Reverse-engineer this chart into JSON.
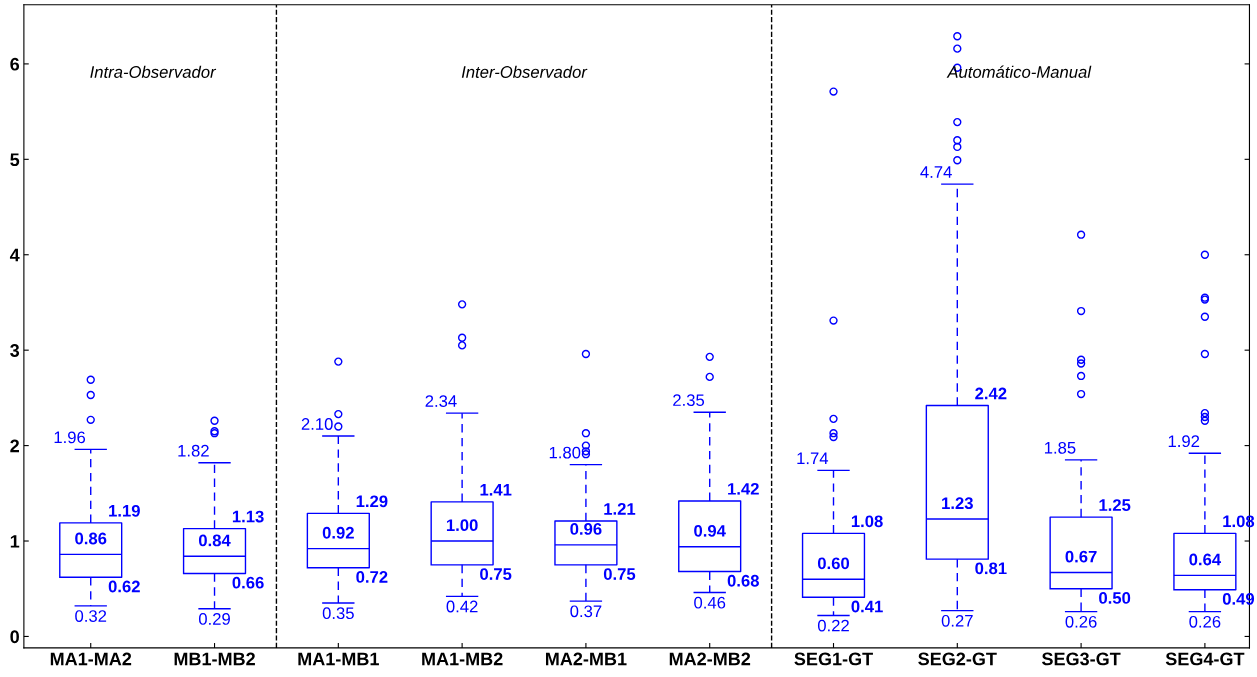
{
  "chart_data": {
    "type": "box",
    "categories": [
      "MA1-MA2",
      "MB1-MB2",
      "MA1-MB1",
      "MA1-MB2",
      "MA2-MB1",
      "MA2-MB2",
      "SEG1-GT",
      "SEG2-GT",
      "SEG3-GT",
      "SEG4-GT"
    ],
    "boxes": [
      {
        "low": 0.32,
        "q1": 0.62,
        "median": 0.86,
        "q3": 1.19,
        "high": 1.96,
        "outliers": [
          2.69,
          2.53,
          2.27
        ]
      },
      {
        "low": 0.29,
        "q1": 0.66,
        "median": 0.84,
        "q3": 1.13,
        "high": 1.82,
        "outliers": [
          2.26,
          2.15,
          2.13
        ]
      },
      {
        "low": 0.35,
        "q1": 0.72,
        "median": 0.92,
        "q3": 1.29,
        "high": 2.1,
        "outliers": [
          2.88,
          2.33,
          2.2
        ]
      },
      {
        "low": 0.42,
        "q1": 0.75,
        "median": 1.0,
        "q3": 1.41,
        "high": 2.34,
        "outliers": [
          3.48,
          3.13,
          3.05
        ]
      },
      {
        "low": 0.37,
        "q1": 0.75,
        "median": 0.96,
        "q3": 1.21,
        "high": 1.8,
        "outliers": [
          2.96,
          2.13,
          2.0,
          1.94,
          1.91
        ]
      },
      {
        "low": 0.46,
        "q1": 0.68,
        "median": 0.94,
        "q3": 1.42,
        "high": 2.35,
        "outliers": [
          2.93,
          2.72
        ]
      },
      {
        "low": 0.22,
        "q1": 0.41,
        "median": 0.6,
        "q3": 1.08,
        "high": 1.74,
        "outliers": [
          5.71,
          3.31,
          2.28,
          2.13,
          2.09
        ]
      },
      {
        "low": 0.27,
        "q1": 0.81,
        "median": 1.23,
        "q3": 2.42,
        "high": 4.74,
        "outliers": [
          6.29,
          6.16,
          5.96,
          5.39,
          5.2,
          5.13,
          4.99
        ]
      },
      {
        "low": 0.26,
        "q1": 0.5,
        "median": 0.67,
        "q3": 1.25,
        "high": 1.85,
        "outliers": [
          4.21,
          3.41,
          2.9,
          2.86,
          2.73,
          2.54
        ]
      },
      {
        "low": 0.26,
        "q1": 0.49,
        "median": 0.64,
        "q3": 1.08,
        "high": 1.92,
        "outliers": [
          4.0,
          3.55,
          3.53,
          3.35,
          2.96,
          2.34,
          2.3,
          2.26
        ]
      }
    ],
    "color": "#0000ff",
    "ylim": [
      -0.12,
      6.62
    ],
    "yticks": [
      0,
      1,
      2,
      3,
      4,
      5,
      6
    ],
    "grid": false,
    "annotations": [
      "Intra-Observador",
      "Inter-Observador",
      "Automático-Manual",
      {
        "text": "1.96",
        "x": "MA1-MA2",
        "y": 1.96
      },
      {
        "text": "1.19",
        "x": "MA1-MA2",
        "y": 1.19
      },
      {
        "text": "0.86",
        "x": "MA1-MA2",
        "y": 0.86
      },
      {
        "text": "0.62",
        "x": "MA1-MA2",
        "y": 0.62
      },
      {
        "text": "0.32",
        "x": "MA1-MA2",
        "y": 0.32
      },
      {
        "text": "1.82",
        "x": "MB1-MB2",
        "y": 1.82
      },
      {
        "text": "1.13",
        "x": "MB1-MB2",
        "y": 1.13
      },
      {
        "text": "0.84",
        "x": "MB1-MB2",
        "y": 0.84
      },
      {
        "text": "0.66",
        "x": "MB1-MB2",
        "y": 0.66
      },
      {
        "text": "0.29",
        "x": "MB1-MB2",
        "y": 0.29
      },
      {
        "text": "2.10",
        "x": "MA1-MB1",
        "y": 2.1
      },
      {
        "text": "1.29",
        "x": "MA1-MB1",
        "y": 1.29
      },
      {
        "text": "0.92",
        "x": "MA1-MB1",
        "y": 0.92
      },
      {
        "text": "0.72",
        "x": "MA1-MB1",
        "y": 0.72
      },
      {
        "text": "0.35",
        "x": "MA1-MB1",
        "y": 0.35
      },
      {
        "text": "2.34",
        "x": "MA1-MB2",
        "y": 2.34
      },
      {
        "text": "1.41",
        "x": "MA1-MB2",
        "y": 1.41
      },
      {
        "text": "1.00",
        "x": "MA1-MB2",
        "y": 1.0
      },
      {
        "text": "0.75",
        "x": "MA1-MB2",
        "y": 0.75
      },
      {
        "text": "0.42",
        "x": "MA1-MB2",
        "y": 0.42
      },
      {
        "text": "1.80",
        "x": "MA2-MB1",
        "y": 1.8
      },
      {
        "text": "1.21",
        "x": "MA2-MB1",
        "y": 1.21
      },
      {
        "text": "0.96",
        "x": "MA2-MB1",
        "y": 0.96
      },
      {
        "text": "0.75",
        "x": "MA2-MB1",
        "y": 0.75
      },
      {
        "text": "0.37",
        "x": "MA2-MB1",
        "y": 0.37
      },
      {
        "text": "2.35",
        "x": "MA2-MB2",
        "y": 2.35
      },
      {
        "text": "1.42",
        "x": "MA2-MB2",
        "y": 1.42
      },
      {
        "text": "0.94",
        "x": "MA2-MB2",
        "y": 0.94
      },
      {
        "text": "0.68",
        "x": "MA2-MB2",
        "y": 0.68
      },
      {
        "text": "0.46",
        "x": "MA2-MB2",
        "y": 0.46
      },
      {
        "text": "1.74",
        "x": "SEG1-GT",
        "y": 1.74
      },
      {
        "text": "1.08",
        "x": "SEG1-GT",
        "y": 1.08
      },
      {
        "text": "0.60",
        "x": "SEG1-GT",
        "y": 0.6
      },
      {
        "text": "0.41",
        "x": "SEG1-GT",
        "y": 0.41
      },
      {
        "text": "0.22",
        "x": "SEG1-GT",
        "y": 0.22
      },
      {
        "text": "4.74",
        "x": "SEG2-GT",
        "y": 4.74
      },
      {
        "text": "2.42",
        "x": "SEG2-GT",
        "y": 2.42
      },
      {
        "text": "1.23",
        "x": "SEG2-GT",
        "y": 1.23
      },
      {
        "text": "0.81",
        "x": "SEG2-GT",
        "y": 0.81
      },
      {
        "text": "0.27",
        "x": "SEG2-GT",
        "y": 0.27
      },
      {
        "text": "1.85",
        "x": "SEG3-GT",
        "y": 1.85
      },
      {
        "text": "1.25",
        "x": "SEG3-GT",
        "y": 1.25
      },
      {
        "text": "0.67",
        "x": "SEG3-GT",
        "y": 0.67
      },
      {
        "text": "0.50",
        "x": "SEG3-GT",
        "y": 0.5
      },
      {
        "text": "0.26",
        "x": "SEG3-GT",
        "y": 0.26
      },
      {
        "text": "1.92",
        "x": "SEG4-GT",
        "y": 1.92
      },
      {
        "text": "1.08",
        "x": "SEG4-GT",
        "y": 1.08
      },
      {
        "text": "0.64",
        "x": "SEG4-GT",
        "y": 0.64
      },
      {
        "text": "0.49",
        "x": "SEG4-GT",
        "y": 0.49
      },
      {
        "text": "0.26",
        "x": "SEG4-GT",
        "y": 0.26
      }
    ]
  }
}
